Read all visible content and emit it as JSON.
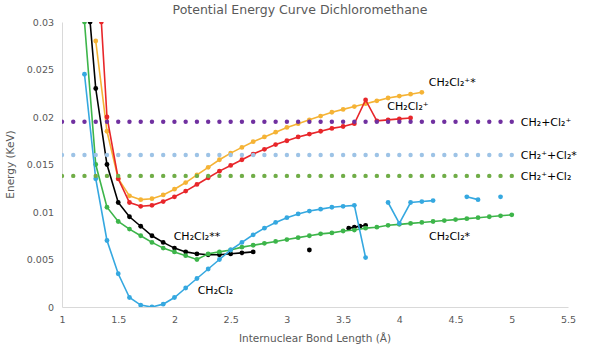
{
  "chart_data": {
    "type": "line",
    "title": "Potential Energy Curve Dichloromethane",
    "x_label": "Internuclear Bond Length (Å)",
    "y_label": "Energy (KeV)",
    "xlim": [
      1,
      5.5
    ],
    "xticks": [
      1,
      1.5,
      2,
      2.5,
      3,
      3.5,
      4,
      4.5,
      5,
      5.5
    ],
    "ylim": [
      0,
      0.03
    ],
    "yticks": [
      0,
      0.005,
      0.01,
      0.015,
      0.02,
      0.025,
      0.03
    ],
    "grid": false,
    "series": [
      {
        "name": "CH₂Cl₂⁺*",
        "color": "#f5b335",
        "type": "line",
        "marker": "circle",
        "line_style": "solid",
        "x": [
          1.3,
          1.4,
          1.5,
          1.6,
          1.7,
          1.8,
          1.9,
          2.0,
          2.1,
          2.2,
          2.3,
          2.4,
          2.5,
          2.6,
          2.7,
          2.8,
          2.9,
          3.0,
          3.1,
          3.2,
          3.3,
          3.4,
          3.5,
          3.6,
          3.7,
          3.8,
          3.9,
          4.0,
          4.1,
          4.2
        ],
        "values": [
          0.028,
          0.0185,
          0.0135,
          0.0117,
          0.0113,
          0.0114,
          0.0118,
          0.0124,
          0.0131,
          0.0139,
          0.0147,
          0.0155,
          0.0162,
          0.0168,
          0.0174,
          0.0179,
          0.0184,
          0.0189,
          0.0193,
          0.0197,
          0.0201,
          0.0205,
          0.0208,
          0.0211,
          0.0214,
          0.0217,
          0.022,
          0.0222,
          0.0224,
          0.0226
        ]
      },
      {
        "name": "CH₂Cl₂⁺",
        "color": "#e8262a",
        "type": "line",
        "marker": "circle",
        "line_style": "solid",
        "x": [
          1.35,
          1.4,
          1.5,
          1.6,
          1.7,
          1.8,
          1.9,
          2.0,
          2.1,
          2.2,
          2.3,
          2.4,
          2.5,
          2.6,
          2.7,
          2.8,
          2.9,
          3.0,
          3.1,
          3.2,
          3.3,
          3.4,
          3.5,
          3.6,
          3.7,
          3.8,
          3.9,
          4.0,
          4.1
        ],
        "values": [
          0.03,
          0.02,
          0.0135,
          0.011,
          0.0106,
          0.0107,
          0.0111,
          0.0116,
          0.0122,
          0.0129,
          0.0136,
          0.0143,
          0.0149,
          0.0155,
          0.0161,
          0.0166,
          0.0171,
          0.0175,
          0.0179,
          0.0182,
          0.0185,
          0.0188,
          0.019,
          0.0193,
          0.0218,
          0.0196,
          0.0197,
          0.0198,
          0.0199
        ]
      },
      {
        "name": "CH₂Cl₂**",
        "color": "#000000",
        "type": "line",
        "marker": "circle",
        "line_style": "solid",
        "x": [
          1.25,
          1.3,
          1.4,
          1.5,
          1.6,
          1.7,
          1.8,
          1.9,
          2.0,
          2.1,
          2.2,
          2.3,
          2.4,
          2.5,
          2.6,
          2.7,
          2.95,
          3.2,
          3.4,
          3.55,
          3.6,
          3.65,
          3.7
        ],
        "values": [
          0.03,
          0.023,
          0.015,
          0.011,
          0.0095,
          0.0085,
          0.0075,
          0.0068,
          0.0062,
          0.0058,
          0.0056,
          0.0055,
          0.0055,
          0.0056,
          0.0057,
          0.0058,
          null,
          0.006,
          null,
          0.0083,
          0.0084,
          0.0085,
          0.0086
        ]
      },
      {
        "name": "CH₂Cl₂*",
        "color": "#3db54a",
        "type": "line",
        "marker": "circle",
        "line_style": "solid",
        "x": [
          1.2,
          1.3,
          1.4,
          1.5,
          1.6,
          1.7,
          1.8,
          1.9,
          2.0,
          2.1,
          2.2,
          2.3,
          2.4,
          2.5,
          2.6,
          2.7,
          2.8,
          2.9,
          3.0,
          3.1,
          3.2,
          3.3,
          3.4,
          3.5,
          3.6,
          3.7,
          3.8,
          3.9,
          4.0,
          4.1,
          4.2,
          4.3,
          4.4,
          4.5,
          4.6,
          4.7,
          4.8,
          4.9,
          5.0
        ],
        "values": [
          0.03,
          0.015,
          0.0105,
          0.009,
          0.0082,
          0.0075,
          0.0068,
          0.0062,
          0.0058,
          0.0054,
          0.005,
          0.0056,
          0.0058,
          0.006,
          0.0063,
          0.0065,
          0.0067,
          0.0069,
          0.0071,
          0.0073,
          0.0075,
          0.0077,
          0.0078,
          0.008,
          0.0081,
          0.0083,
          0.0084,
          0.0086,
          0.0087,
          0.0088,
          0.0089,
          0.009,
          0.0091,
          0.0092,
          0.0093,
          0.0094,
          0.0095,
          0.0096,
          0.0097
        ]
      },
      {
        "name": "CH₂Cl₂",
        "color": "#35a8e0",
        "type": "line",
        "marker": "circle",
        "line_style": "solid",
        "x": [
          1.2,
          1.3,
          1.4,
          1.5,
          1.6,
          1.7,
          1.8,
          1.9,
          2.0,
          2.1,
          2.2,
          2.3,
          2.4,
          2.5,
          2.6,
          2.7,
          2.8,
          2.9,
          3.0,
          3.1,
          3.2,
          3.3,
          3.4,
          3.5,
          3.6,
          3.7,
          3.8,
          3.9,
          4.0,
          4.1,
          4.2,
          4.3,
          4.45,
          4.6,
          4.7,
          4.8,
          4.9
        ],
        "values": [
          0.0245,
          0.0135,
          0.007,
          0.0035,
          0.001,
          0.0002,
          0,
          0.0003,
          0.001,
          0.002,
          0.003,
          0.004,
          0.005,
          0.006,
          0.0068,
          0.0076,
          0.0083,
          0.0089,
          0.0094,
          0.0098,
          0.0101,
          0.0103,
          0.0105,
          0.0106,
          0.0107,
          0.0052,
          null,
          0.011,
          0.0088,
          0.011,
          0.0111,
          0.0112,
          null,
          0.0116,
          0.0113,
          null,
          0.0116
        ]
      },
      {
        "name": "CH₂+Cl₂⁺",
        "color": "#7030a0",
        "type": "scatter",
        "marker": "circle",
        "x": [
          1.0,
          1.1,
          1.2,
          1.3,
          1.4,
          1.5,
          1.6,
          1.7,
          1.8,
          1.9,
          2.0,
          2.1,
          2.2,
          2.3,
          2.4,
          2.5,
          2.6,
          2.7,
          2.8,
          2.9,
          3.0,
          3.1,
          3.2,
          3.3,
          3.4,
          3.5,
          3.6,
          3.7,
          3.8,
          3.9,
          4.0,
          4.1,
          4.2,
          4.3,
          4.4,
          4.5,
          4.6,
          4.7,
          4.8,
          4.9,
          5.0
        ],
        "values": [
          0.0195,
          0.0195,
          0.0195,
          0.0195,
          0.0195,
          0.0195,
          0.0195,
          0.0195,
          0.0195,
          0.0195,
          0.0195,
          0.0195,
          0.0195,
          0.0195,
          0.0195,
          0.0195,
          0.0195,
          0.0195,
          0.0195,
          0.0195,
          0.0195,
          0.0195,
          0.0195,
          0.0195,
          0.0195,
          0.0195,
          0.0195,
          0.0195,
          0.0195,
          0.0195,
          0.0195,
          0.0195,
          0.0195,
          0.0195,
          0.0195,
          0.0195,
          0.0195,
          0.0195,
          0.0195,
          0.0195,
          0.0195
        ]
      },
      {
        "name": "CH₂⁺+Cl₂*",
        "color": "#9dc3e6",
        "type": "scatter",
        "marker": "circle",
        "x": [
          1.0,
          1.1,
          1.2,
          1.3,
          1.4,
          1.5,
          1.6,
          1.7,
          1.8,
          1.9,
          2.0,
          2.1,
          2.2,
          2.3,
          2.4,
          2.5,
          2.6,
          2.7,
          2.8,
          2.9,
          3.0,
          3.1,
          3.2,
          3.3,
          3.4,
          3.5,
          3.6,
          3.7,
          3.8,
          3.9,
          4.0,
          4.1,
          4.2,
          4.3,
          4.4,
          4.5,
          4.6,
          4.7,
          4.8,
          4.9,
          5.0
        ],
        "values": [
          0.016,
          0.016,
          0.016,
          0.016,
          0.016,
          0.016,
          0.016,
          0.016,
          0.016,
          0.016,
          0.016,
          0.016,
          0.016,
          0.016,
          0.016,
          0.016,
          0.016,
          0.016,
          0.016,
          0.016,
          0.016,
          0.016,
          0.016,
          0.016,
          0.016,
          0.016,
          0.016,
          0.016,
          0.016,
          0.016,
          0.016,
          0.016,
          0.016,
          0.016,
          0.016,
          0.016,
          0.016,
          0.016,
          0.016,
          0.016,
          0.016
        ]
      },
      {
        "name": "CH₂⁺+Cl₂",
        "color": "#70ad47",
        "type": "scatter",
        "marker": "circle",
        "x": [
          1.0,
          1.1,
          1.2,
          1.3,
          1.4,
          1.5,
          1.6,
          1.7,
          1.8,
          1.9,
          2.0,
          2.1,
          2.2,
          2.3,
          2.4,
          2.5,
          2.6,
          2.7,
          2.8,
          2.9,
          3.0,
          3.1,
          3.2,
          3.3,
          3.4,
          3.5,
          3.6,
          3.7,
          3.8,
          3.9,
          4.0,
          4.1,
          4.2,
          4.3,
          4.4,
          4.5,
          4.6,
          4.7,
          4.8,
          4.9,
          5.0
        ],
        "values": [
          0.0138,
          0.0138,
          0.0138,
          0.0138,
          0.0138,
          0.0138,
          0.0138,
          0.0138,
          0.0138,
          0.0138,
          0.0138,
          0.0138,
          0.0138,
          0.0138,
          0.0138,
          0.0138,
          0.0138,
          0.0138,
          0.0138,
          0.0138,
          0.0138,
          0.0138,
          0.0138,
          0.0138,
          0.0138,
          0.0138,
          0.0138,
          0.0138,
          0.0138,
          0.0138,
          0.0138,
          0.0138,
          0.0138,
          0.0138,
          0.0138,
          0.0138,
          0.0138,
          0.0138,
          0.0138,
          0.0138,
          0.0138
        ]
      }
    ]
  }
}
